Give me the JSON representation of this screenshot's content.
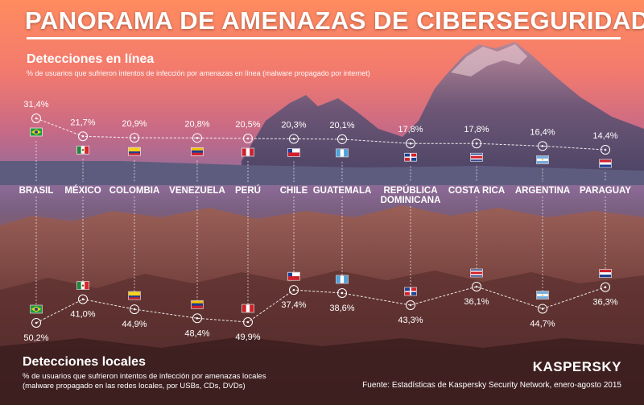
{
  "title": "PANORAMA DE AMENAZAS DE CIBERSEGURIDAD",
  "online_section": {
    "heading": "Detecciones en línea",
    "subtitle": "% de usuarios que sufrieron intentos de infección por amenazas en línea (malware propagado por internet)"
  },
  "local_section": {
    "heading": "Detecciones locales",
    "subtitle": "% de usuarios que sufrieron intentos de infección por amenazas locales (malware propagado en las redes locales, por USBs, CDs, DVDs)"
  },
  "source": "Fuente: Estadísticas de Kaspersky Security Network, enero-agosto 2015",
  "logo": "KASPERSKY",
  "colors": {
    "sky_top": "#ff8a62",
    "sky_mid": "#d56c80",
    "sky_low": "#8a6c99",
    "land_top": "#8e5b5a",
    "land_bottom": "#3f2224",
    "rule": "#ffffff"
  },
  "chart_data": [
    {
      "type": "line",
      "name": "Detecciones en línea",
      "categories": [
        "BRASIL",
        "MÉXICO",
        "COLOMBIA",
        "VENEZUELA",
        "PERÚ",
        "CHILE",
        "GUATEMALA",
        "REPÚBLICA DOMINICANA",
        "COSTA RICA",
        "ARGENTINA",
        "PARAGUAY"
      ],
      "labels": [
        "31,4%",
        "21,7%",
        "20,9%",
        "20,8%",
        "20,5%",
        "20,3%",
        "20,1%",
        "17,8%",
        "17,8%",
        "16,4%",
        "14,4%"
      ],
      "values": [
        31.4,
        21.7,
        20.9,
        20.8,
        20.5,
        20.3,
        20.1,
        17.8,
        17.8,
        16.4,
        14.4
      ]
    },
    {
      "type": "line",
      "name": "Detecciones locales",
      "categories": [
        "BRASIL",
        "MÉXICO",
        "COLOMBIA",
        "VENEZUELA",
        "PERÚ",
        "CHILE",
        "GUATEMALA",
        "REPÚBLICA DOMINICANA",
        "COSTA RICA",
        "ARGENTINA",
        "PARAGUAY"
      ],
      "labels": [
        "50,2%",
        "41,0%",
        "44,9%",
        "48,4%",
        "49,9%",
        "37,4%",
        "38,6%",
        "43,3%",
        "36,1%",
        "44,7%",
        "36,3%"
      ],
      "values": [
        50.2,
        41.0,
        44.9,
        48.4,
        49.9,
        37.4,
        38.6,
        43.3,
        36.1,
        44.7,
        36.3
      ]
    }
  ],
  "country_labels": [
    [
      "BRASIL"
    ],
    [
      "MÉXICO"
    ],
    [
      "COLOMBIA"
    ],
    [
      "VENEZUELA"
    ],
    [
      "PERÚ"
    ],
    [
      "CHILE"
    ],
    [
      "GUATEMALA"
    ],
    [
      "REPÚBLICA",
      "DOMINICANA"
    ],
    [
      "COSTA RICA"
    ],
    [
      "ARGENTINA"
    ],
    [
      "PARAGUAY"
    ]
  ],
  "flags": [
    "brazil-flag",
    "mexico-flag",
    "colombia-flag",
    "venezuela-flag",
    "peru-flag",
    "chile-flag",
    "guatemala-flag",
    "dominican-republic-flag",
    "costa-rica-flag",
    "argentina-flag",
    "paraguay-flag"
  ]
}
